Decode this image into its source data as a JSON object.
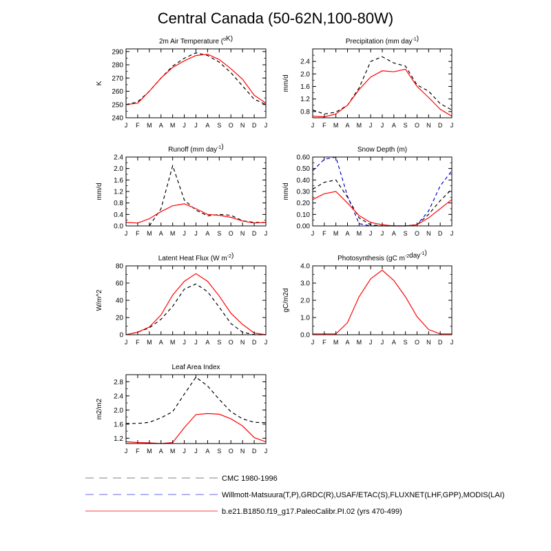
{
  "title": "Central Canada (50-62N,100-80W)",
  "months": [
    "J",
    "F",
    "M",
    "A",
    "M",
    "J",
    "J",
    "A",
    "S",
    "O",
    "N",
    "D",
    "J"
  ],
  "colors": {
    "cmc": "#000000",
    "obs": "#0000cc",
    "model": "#ff0000"
  },
  "legend": [
    {
      "label": "CMC 1980-1996",
      "color": "#999999",
      "dash": true
    },
    {
      "label": "Willmott-Matsuura(T,P),GRDC(R),USAF/ETAC(S),FLUXNET(LHF,GPP),MODIS(LAI)",
      "color": "#8888ee",
      "dash": true
    },
    {
      "label": "b.e21.B1850.f19_g17.PaleoCalibr.PI.02 (yrs 470-499)",
      "color": "#ff6666",
      "dash": false
    }
  ],
  "chart_data": [
    {
      "type": "line",
      "title_parts": [
        "2m Air Temperature (",
        "o",
        "K)"
      ],
      "ylabel": "K",
      "ylim": [
        240,
        292
      ],
      "yticks": [
        240,
        250,
        260,
        270,
        280,
        290
      ],
      "ytick_labels": [
        "240",
        "250",
        "260",
        "270",
        "280",
        "290"
      ],
      "series": [
        {
          "name": "CMC",
          "style": "cmc",
          "values": [
            250,
            252,
            260,
            270,
            279,
            285,
            289,
            287,
            282,
            274,
            264,
            254,
            250
          ]
        },
        {
          "name": "Model",
          "style": "model",
          "values": [
            250,
            251,
            260,
            270,
            278,
            283,
            287,
            288,
            284,
            277,
            269,
            257,
            251
          ]
        }
      ]
    },
    {
      "type": "line",
      "title_parts": [
        "Precipitation (mm day",
        "-1",
        ")"
      ],
      "ylabel": "mm/d",
      "ylim": [
        0.6,
        2.8
      ],
      "yticks": [
        0.8,
        1.2,
        1.6,
        2.0,
        2.4
      ],
      "ytick_labels": [
        "0.8",
        "1.2",
        "1.6",
        "2.0",
        "2.4"
      ],
      "series": [
        {
          "name": "CMC",
          "style": "cmc",
          "values": [
            0.85,
            0.72,
            0.78,
            1.0,
            1.55,
            2.4,
            2.55,
            2.35,
            2.25,
            1.65,
            1.45,
            1.05,
            0.85
          ]
        },
        {
          "name": "Model",
          "style": "model",
          "values": [
            0.65,
            0.63,
            0.72,
            1.0,
            1.5,
            1.9,
            2.1,
            2.07,
            2.15,
            1.6,
            1.25,
            0.87,
            0.65
          ]
        }
      ]
    },
    {
      "type": "line",
      "title_parts": [
        "Runoff (mm day",
        "-1",
        ")"
      ],
      "ylabel": "mm/d",
      "ylim": [
        0,
        2.4
      ],
      "yticks": [
        0.0,
        0.4,
        0.8,
        1.2,
        1.6,
        2.0,
        2.4
      ],
      "ytick_labels": [
        "0.0",
        "0.4",
        "0.8",
        "1.2",
        "1.6",
        "2.0",
        "2.4"
      ],
      "series": [
        {
          "name": "CMC",
          "style": "cmc",
          "values": [
            null,
            null,
            0.0,
            0.6,
            2.1,
            0.9,
            0.55,
            0.35,
            0.4,
            0.37,
            0.18,
            0.12,
            0.12
          ]
        },
        {
          "name": "Model",
          "style": "model",
          "values": [
            0.12,
            0.1,
            0.25,
            0.5,
            0.7,
            0.77,
            0.6,
            0.4,
            0.37,
            0.3,
            0.17,
            0.1,
            0.12
          ]
        }
      ]
    },
    {
      "type": "line",
      "title_parts": [
        "Snow Depth (m)"
      ],
      "ylabel": "mm/d",
      "ylim": [
        0,
        0.6
      ],
      "yticks": [
        0.0,
        0.1,
        0.2,
        0.3,
        0.4,
        0.5,
        0.6
      ],
      "ytick_labels": [
        "0.00",
        "0.10",
        "0.20",
        "0.30",
        "0.40",
        "0.50",
        "0.60"
      ],
      "series": [
        {
          "name": "CMC",
          "style": "cmc",
          "values": [
            0.32,
            0.38,
            0.4,
            0.25,
            0.07,
            0.01,
            0.0,
            0.0,
            0.0,
            0.01,
            0.1,
            0.22,
            0.32
          ]
        },
        {
          "name": "Observations",
          "style": "obs",
          "values": [
            0.48,
            0.58,
            0.6,
            0.26,
            0.02,
            0.0,
            0.0,
            0.0,
            0.0,
            0.01,
            0.13,
            0.35,
            0.48
          ]
        },
        {
          "name": "Model",
          "style": "model",
          "values": [
            0.23,
            0.28,
            0.3,
            0.2,
            0.09,
            0.03,
            0.01,
            0.0,
            0.0,
            0.01,
            0.07,
            0.15,
            0.23
          ]
        }
      ]
    },
    {
      "type": "line",
      "title_parts": [
        "Latent Heat Flux (W m",
        "-2",
        ")"
      ],
      "ylabel": "W/m^2",
      "ylim": [
        0,
        80
      ],
      "yticks": [
        0,
        20,
        40,
        60,
        80
      ],
      "ytick_labels": [
        "0",
        "20",
        "40",
        "60",
        "80"
      ],
      "series": [
        {
          "name": "CMC",
          "style": "cmc",
          "values": [
            0,
            3,
            8,
            18,
            33,
            53,
            59,
            50,
            32,
            13,
            3,
            0,
            0
          ]
        },
        {
          "name": "Model",
          "style": "model",
          "values": [
            0,
            3,
            9,
            23,
            46,
            62,
            71,
            62,
            45,
            25,
            12,
            2,
            0
          ]
        }
      ]
    },
    {
      "type": "line",
      "title_parts": [
        "Photosynthesis (gC m",
        "-2",
        "day",
        "-1",
        ")"
      ],
      "ylabel": "gC/m2d",
      "ylim": [
        0,
        4
      ],
      "yticks": [
        0,
        1,
        2,
        3,
        4
      ],
      "ytick_labels": [
        "0.0",
        "1.0",
        "2.0",
        "3.0",
        "4.0"
      ],
      "series": [
        {
          "name": "Model",
          "style": "model",
          "values": [
            0.05,
            0.05,
            0.05,
            0.7,
            2.2,
            3.25,
            3.75,
            3.15,
            2.2,
            1.05,
            0.3,
            0.05,
            0.05
          ]
        }
      ]
    },
    {
      "type": "line",
      "title_parts": [
        "Leaf Area Index"
      ],
      "ylabel": "m2/m2",
      "ylim": [
        1.05,
        3.0
      ],
      "yticks": [
        1.2,
        1.6,
        2.0,
        2.4,
        2.8
      ],
      "ytick_labels": [
        "1.2",
        "1.6",
        "2.0",
        "2.4",
        "2.8"
      ],
      "series": [
        {
          "name": "CMC",
          "style": "cmc",
          "values": [
            1.62,
            1.62,
            1.65,
            1.78,
            1.95,
            2.45,
            2.93,
            2.68,
            2.3,
            1.95,
            1.75,
            1.65,
            1.64
          ]
        },
        {
          "name": "Model",
          "style": "model",
          "values": [
            1.1,
            1.08,
            1.07,
            1.05,
            1.08,
            1.5,
            1.87,
            1.9,
            1.88,
            1.75,
            1.55,
            1.22,
            1.1
          ]
        }
      ]
    }
  ]
}
